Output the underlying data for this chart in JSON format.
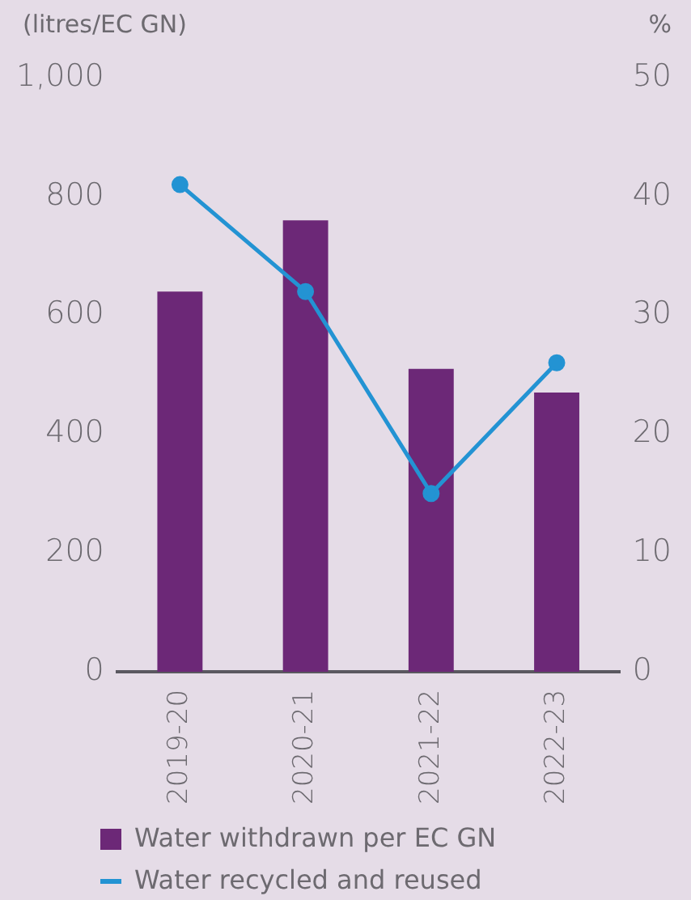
{
  "chart_data": {
    "type": "bar",
    "ylabel": "(litres/EC GN)",
    "y2label": "%",
    "categories": [
      "2019-20",
      "2020-21",
      "2021-22",
      "2022-23"
    ],
    "series": [
      {
        "name": "Water withdrawn per EC GN",
        "color": "#6c2877",
        "values": [
          640,
          760,
          510,
          470
        ]
      },
      {
        "name": "Water recycled and reused",
        "type": "line",
        "axis": "y2",
        "color": "#2393d3",
        "values": [
          41,
          32,
          15,
          26
        ]
      }
    ],
    "ylim": [
      0,
      1000
    ],
    "yticks": [
      0,
      200,
      400,
      600,
      800,
      {
        "value": 1000,
        "label": "1,000"
      }
    ],
    "y2lim": [
      0,
      50
    ],
    "y2ticks": [
      0,
      10,
      20,
      30,
      40,
      50
    ],
    "grid": false,
    "legend": "bottom",
    "marker": "circle",
    "line_style": "solid"
  }
}
